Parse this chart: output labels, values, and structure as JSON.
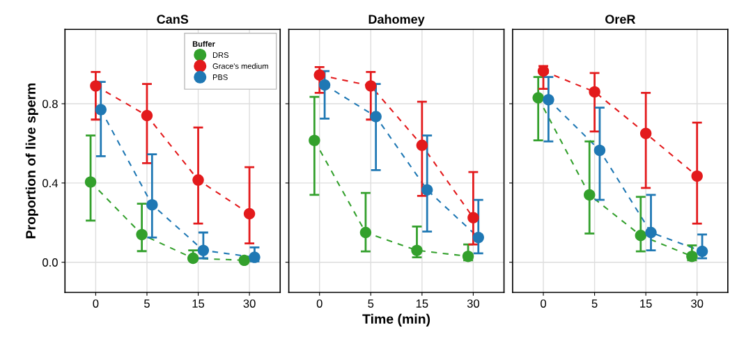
{
  "chart_data": [
    {
      "type": "line",
      "title": "CanS",
      "ylabel": "Proportion of live sperm",
      "categories": [
        "0",
        "5",
        "15",
        "30"
      ],
      "ylim": [
        -0.152,
        1.175
      ],
      "yticks": [
        {
          "value": 0,
          "label": "0.0"
        },
        0.4,
        0.8
      ],
      "grid": true,
      "legend": "top right",
      "legend_title": "Buffer",
      "marker": "circle",
      "line_style": "dashed",
      "series": [
        {
          "name": "DRS",
          "color": "#33a02c",
          "values": [
            0.405,
            0.14,
            0.02,
            0.01
          ],
          "errors": [
            [
              0.21,
              0.64
            ],
            [
              0.056,
              0.295
            ],
            [
              0.02,
              0.06
            ],
            null
          ]
        },
        {
          "name": "Grace's medium",
          "color": "#e31a1c",
          "values": [
            0.89,
            0.74,
            0.415,
            0.245
          ],
          "errors": [
            [
              0.72,
              0.96
            ],
            [
              0.5,
              0.9
            ],
            [
              0.195,
              0.68
            ],
            [
              0.095,
              0.48
            ]
          ]
        },
        {
          "name": "PBS",
          "color": "#1f78b4",
          "values": [
            0.77,
            0.29,
            0.06,
            0.025
          ],
          "errors": [
            [
              0.535,
              0.91
            ],
            [
              0.125,
              0.545
            ],
            [
              0.02,
              0.15
            ],
            [
              0.005,
              0.075
            ]
          ]
        }
      ]
    },
    {
      "type": "line",
      "title": "Dahomey",
      "xlabel": "Time (min)",
      "categories": [
        "0",
        "5",
        "15",
        "30"
      ],
      "ylim": [
        -0.152,
        1.175
      ],
      "tick_labels": "x",
      "grid": true,
      "marker": "circle",
      "line_style": "dashed",
      "series": [
        {
          "color": "#33a02c",
          "values": [
            0.615,
            0.15,
            0.06,
            0.03
          ],
          "errors": [
            [
              0.34,
              0.835
            ],
            [
              0.055,
              0.35
            ],
            [
              0.025,
              0.18
            ],
            [
              0.01,
              0.09
            ]
          ]
        },
        {
          "color": "#e31a1c",
          "values": [
            0.945,
            0.89,
            0.59,
            0.225
          ],
          "errors": [
            [
              0.855,
              0.985
            ],
            [
              0.72,
              0.96
            ],
            [
              0.335,
              0.81
            ],
            [
              0.09,
              0.455
            ]
          ]
        },
        {
          "color": "#1f78b4",
          "values": [
            0.895,
            0.735,
            0.365,
            0.125
          ],
          "errors": [
            [
              0.725,
              0.965
            ],
            [
              0.465,
              0.9
            ],
            [
              0.155,
              0.64
            ],
            [
              0.045,
              0.315
            ]
          ]
        }
      ]
    },
    {
      "type": "line",
      "title": "OreR",
      "categories": [
        "0",
        "5",
        "15",
        "30"
      ],
      "ylim": [
        -0.152,
        1.175
      ],
      "tick_labels": "x",
      "grid": true,
      "marker": "circle",
      "line_style": "dashed",
      "series": [
        {
          "color": "#33a02c",
          "values": [
            0.83,
            0.34,
            0.135,
            0.03
          ],
          "errors": [
            [
              0.615,
              0.935
            ],
            [
              0.145,
              0.61
            ],
            [
              0.055,
              0.33
            ],
            [
              0.01,
              0.085
            ]
          ]
        },
        {
          "color": "#e31a1c",
          "values": [
            0.965,
            0.86,
            0.65,
            0.435
          ],
          "errors": [
            [
              0.875,
              0.99
            ],
            [
              0.66,
              0.955
            ],
            [
              0.375,
              0.855
            ],
            [
              0.195,
              0.705
            ]
          ]
        },
        {
          "color": "#1f78b4",
          "values": [
            0.82,
            0.565,
            0.15,
            0.055
          ],
          "errors": [
            [
              0.61,
              0.935
            ],
            [
              0.315,
              0.78
            ],
            [
              0.06,
              0.34
            ],
            [
              0.02,
              0.14
            ]
          ]
        }
      ]
    }
  ]
}
